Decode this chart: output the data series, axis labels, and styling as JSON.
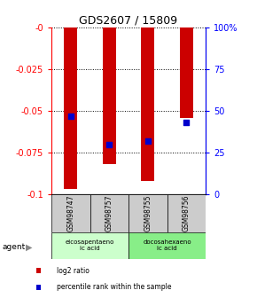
{
  "title": "GDS2607 / 15809",
  "categories": [
    "GSM98747",
    "GSM98757",
    "GSM98755",
    "GSM98756"
  ],
  "log2_ratios": [
    -0.097,
    -0.082,
    -0.092,
    -0.054
  ],
  "percentile_ranks": [
    47,
    30,
    32,
    43
  ],
  "ylim_left": [
    -0.1,
    0
  ],
  "ylim_right": [
    0,
    100
  ],
  "yticks_left": [
    -0.1,
    -0.075,
    -0.05,
    -0.025,
    0
  ],
  "yticks_right": [
    0,
    25,
    50,
    75,
    100
  ],
  "bar_color": "#cc0000",
  "dot_color": "#0000cc",
  "agent_groups": [
    {
      "label": "eicosapentaeno\nic acid",
      "indices": [
        0,
        1
      ],
      "color": "#ccffcc"
    },
    {
      "label": "docosahexaeno\nic acid",
      "indices": [
        2,
        3
      ],
      "color": "#88ee88"
    }
  ],
  "xlabel_box_color": "#cccccc",
  "legend_items": [
    {
      "label": "log2 ratio",
      "color": "#cc0000"
    },
    {
      "label": "percentile rank within the sample",
      "color": "#0000cc"
    }
  ],
  "agent_label": "agent",
  "bar_width": 0.35,
  "dot_size": 25
}
